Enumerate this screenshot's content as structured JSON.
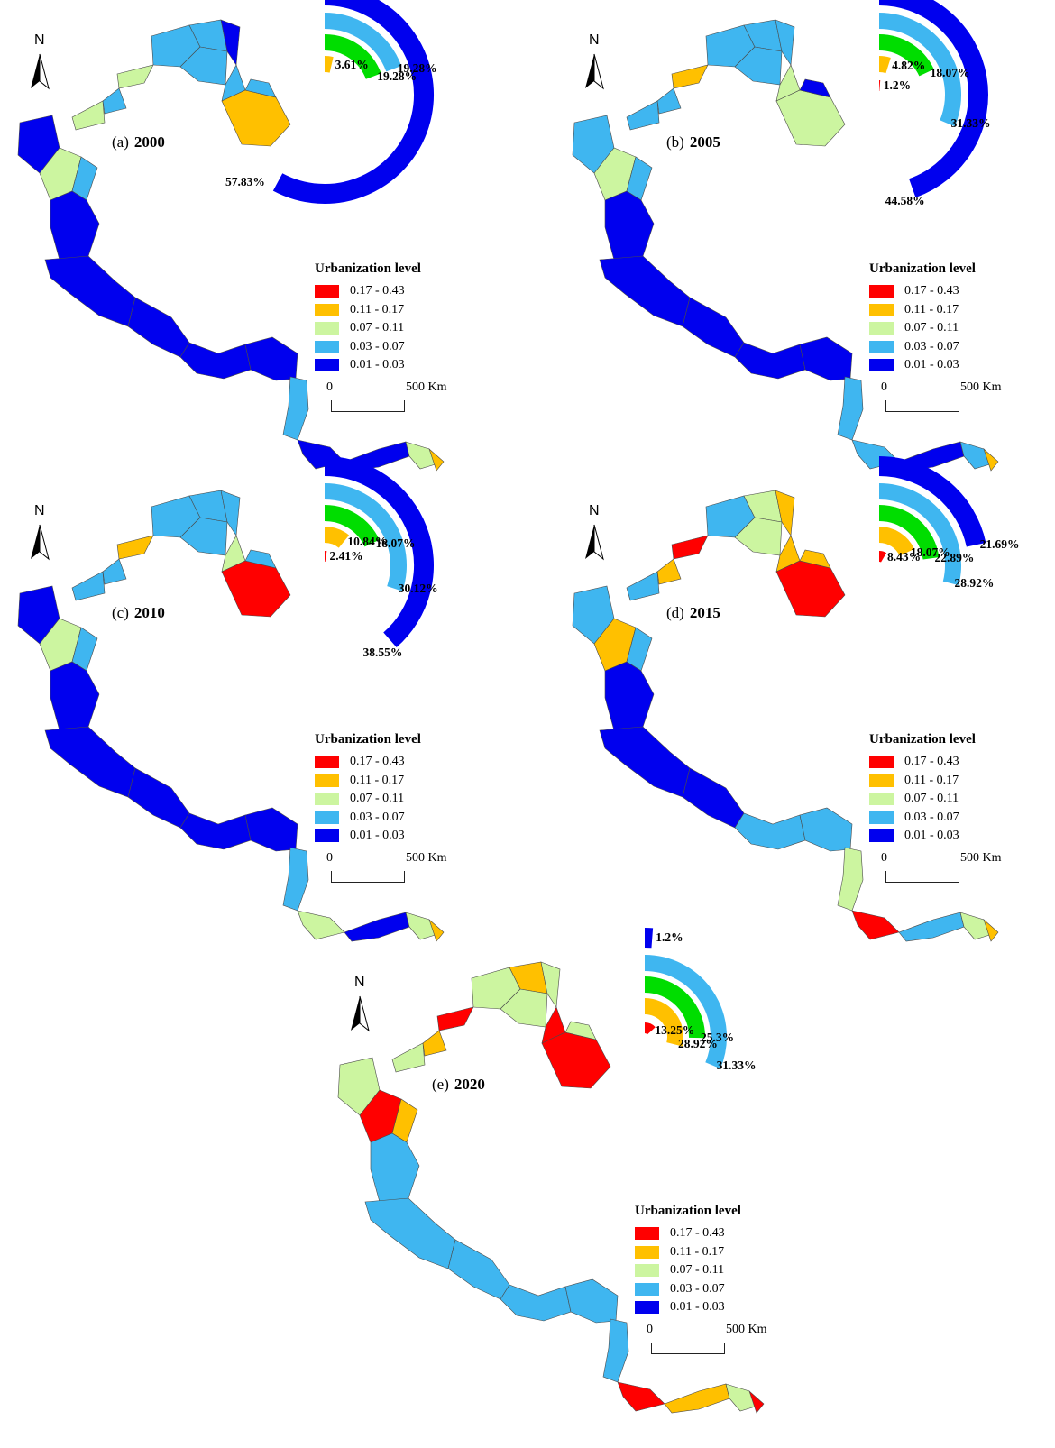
{
  "colors": {
    "c1": "#ff0000",
    "c2": "#ffc000",
    "c3": "#ccf5a0",
    "c4": "#3fb6f0",
    "c5": "#0000ee",
    "ring3": "#00dd00"
  },
  "legend": {
    "title": "Urbanization  level",
    "classes": [
      "0.17 - 0.43",
      "0.11 - 0.17",
      "0.07 - 0.11",
      "0.03 - 0.07",
      "0.01 - 0.03"
    ]
  },
  "scale": {
    "zero": "0",
    "max": "500 Km"
  },
  "north_letter": "N",
  "panels": [
    {
      "label": "(a)",
      "year": "2000",
      "shares": [
        0,
        3.61,
        19.28,
        19.28,
        57.83
      ],
      "pct_labels": [
        "",
        "3.61%",
        "19.28%",
        "19.28%",
        "57.83%"
      ]
    },
    {
      "label": "(b)",
      "year": "2005",
      "shares": [
        1.2,
        4.82,
        18.07,
        31.33,
        44.58
      ],
      "pct_labels": [
        "1.2%",
        "4.82%",
        "18.07%",
        "31.33%",
        "44.58%"
      ]
    },
    {
      "label": "(c)",
      "year": "2010",
      "shares": [
        2.41,
        10.84,
        18.07,
        30.12,
        38.55
      ],
      "pct_labels": [
        "2.41%",
        "10.84%",
        "18.07%",
        "30.12%",
        "38.55%"
      ]
    },
    {
      "label": "(d)",
      "year": "2015",
      "shares": [
        8.43,
        18.07,
        22.89,
        28.92,
        21.69
      ],
      "pct_labels": [
        "8.43%",
        "18.07%",
        "22.89%",
        "28.92%",
        "21.69%"
      ]
    },
    {
      "label": "(e)",
      "year": "2020",
      "shares": [
        13.25,
        28.92,
        25.3,
        31.33,
        1.2
      ],
      "pct_labels": [
        "13.25%",
        "28.92%",
        "25.3%",
        "31.33%",
        "1.2%"
      ]
    }
  ]
}
